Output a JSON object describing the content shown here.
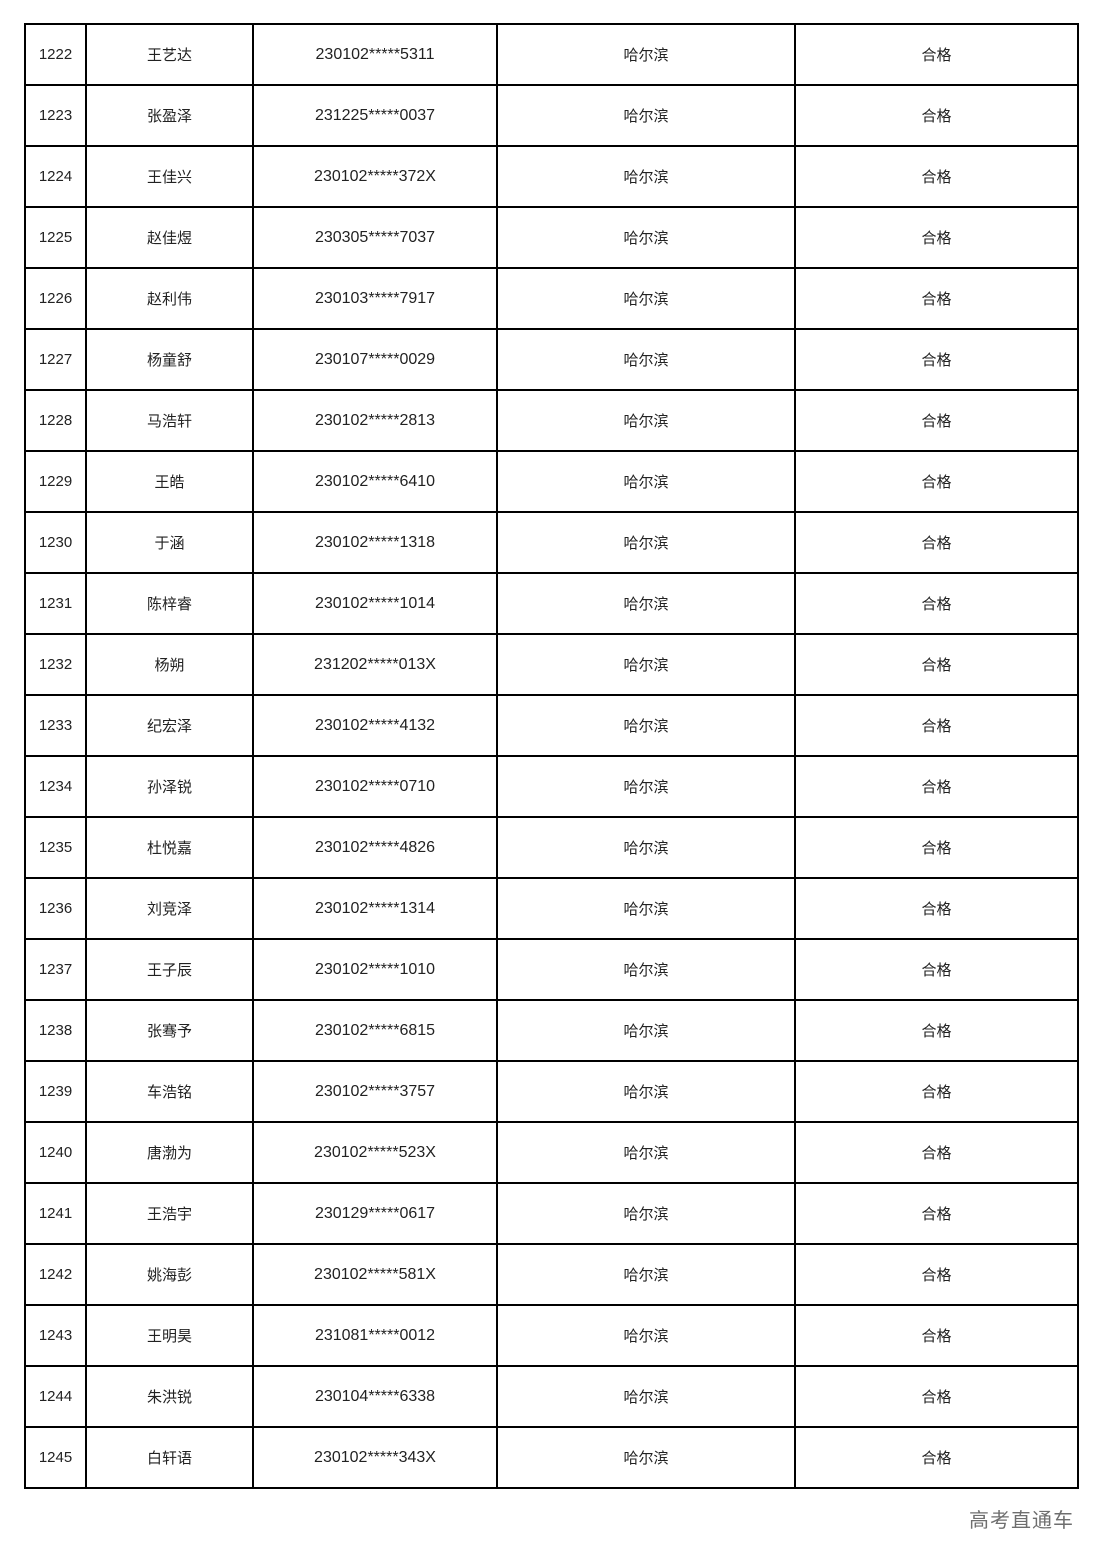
{
  "watermark": "高考直通车",
  "table": {
    "rows": [
      [
        "1222",
        "王艺达",
        "230102*****5311",
        "哈尔滨",
        "合格"
      ],
      [
        "1223",
        "张盈泽",
        "231225*****0037",
        "哈尔滨",
        "合格"
      ],
      [
        "1224",
        "王佳兴",
        "230102*****372X",
        "哈尔滨",
        "合格"
      ],
      [
        "1225",
        "赵佳煜",
        "230305*****7037",
        "哈尔滨",
        "合格"
      ],
      [
        "1226",
        "赵利伟",
        "230103*****7917",
        "哈尔滨",
        "合格"
      ],
      [
        "1227",
        "杨童舒",
        "230107*****0029",
        "哈尔滨",
        "合格"
      ],
      [
        "1228",
        "马浩轩",
        "230102*****2813",
        "哈尔滨",
        "合格"
      ],
      [
        "1229",
        "王皓",
        "230102*****6410",
        "哈尔滨",
        "合格"
      ],
      [
        "1230",
        "于涵",
        "230102*****1318",
        "哈尔滨",
        "合格"
      ],
      [
        "1231",
        "陈梓睿",
        "230102*****1014",
        "哈尔滨",
        "合格"
      ],
      [
        "1232",
        "杨朔",
        "231202*****013X",
        "哈尔滨",
        "合格"
      ],
      [
        "1233",
        "纪宏泽",
        "230102*****4132",
        "哈尔滨",
        "合格"
      ],
      [
        "1234",
        "孙泽锐",
        "230102*****0710",
        "哈尔滨",
        "合格"
      ],
      [
        "1235",
        "杜悦嘉",
        "230102*****4826",
        "哈尔滨",
        "合格"
      ],
      [
        "1236",
        "刘竞泽",
        "230102*****1314",
        "哈尔滨",
        "合格"
      ],
      [
        "1237",
        "王子辰",
        "230102*****1010",
        "哈尔滨",
        "合格"
      ],
      [
        "1238",
        "张骞予",
        "230102*****6815",
        "哈尔滨",
        "合格"
      ],
      [
        "1239",
        "车浩铭",
        "230102*****3757",
        "哈尔滨",
        "合格"
      ],
      [
        "1240",
        "唐渤为",
        "230102*****523X",
        "哈尔滨",
        "合格"
      ],
      [
        "1241",
        "王浩宇",
        "230129*****0617",
        "哈尔滨",
        "合格"
      ],
      [
        "1242",
        "姚海彭",
        "230102*****581X",
        "哈尔滨",
        "合格"
      ],
      [
        "1243",
        "王明昊",
        "231081*****0012",
        "哈尔滨",
        "合格"
      ],
      [
        "1244",
        "朱洪锐",
        "230104*****6338",
        "哈尔滨",
        "合格"
      ],
      [
        "1245",
        "白轩语",
        "230102*****343X",
        "哈尔滨",
        "合格"
      ]
    ]
  }
}
